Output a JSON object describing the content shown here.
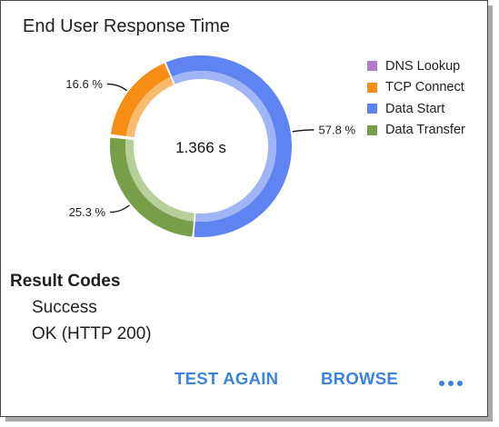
{
  "card": {
    "title": "End User Response Time"
  },
  "chart_data": {
    "type": "pie",
    "center_label": "1.366 s",
    "categories": [
      "DNS Lookup",
      "TCP Connect",
      "Data Start",
      "Data Transfer"
    ],
    "values": [
      0.3,
      16.6,
      57.8,
      25.3
    ],
    "colors": [
      "#b07cc6",
      "#f68e15",
      "#5f83f0",
      "#779e49"
    ],
    "inner_colors": [
      "#d4b5e0",
      "#fbbb6e",
      "#9fb5f5",
      "#b7cf98"
    ],
    "data_labels": [
      "",
      "16.6 %",
      "57.8 %",
      "25.3 %"
    ],
    "legend_position": "right"
  },
  "legend": [
    {
      "label": "DNS Lookup",
      "color": "#b07cc6"
    },
    {
      "label": "TCP Connect",
      "color": "#f68e15"
    },
    {
      "label": "Data Start",
      "color": "#5f83f0"
    },
    {
      "label": "Data Transfer",
      "color": "#779e49"
    }
  ],
  "results": {
    "title": "Result Codes",
    "lines": [
      "Success",
      "OK (HTTP 200)"
    ]
  },
  "actions": {
    "test_again": "TEST AGAIN",
    "browse": "BROWSE",
    "more_icon": "more-horiz-icon"
  }
}
